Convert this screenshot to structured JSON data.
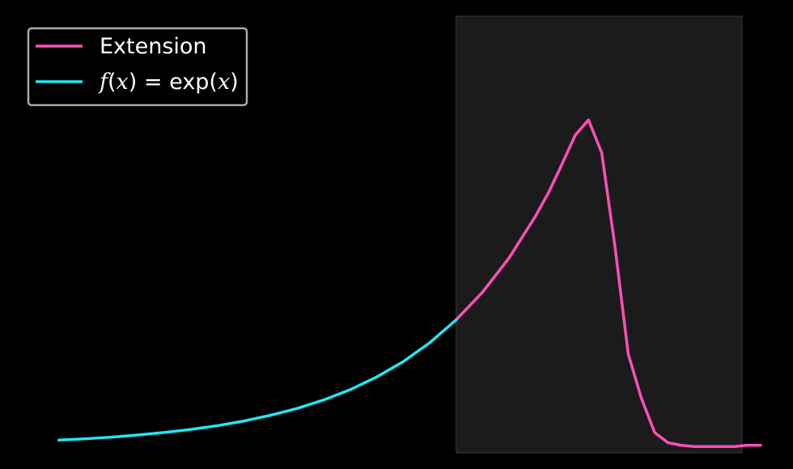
{
  "colors": {
    "background": "#000000",
    "shaded_region": "#1b1b1b",
    "shaded_region_border": "#3a3a3a",
    "extension": "#ff4fb8",
    "exp": "#22e6f0",
    "legend_border": "#aaaaaa",
    "text": "#ffffff"
  },
  "chart_data": {
    "type": "line",
    "title": "",
    "xlabel": "",
    "ylabel": "",
    "axes_visible": false,
    "grid": false,
    "legend_position": "top-left",
    "xlim": [
      -3.2,
      2.3
    ],
    "ylim": [
      -0.05,
      3.4
    ],
    "shaded_x_range": [
      0,
      2.4
    ],
    "series": [
      {
        "name": "Extension",
        "color": "#ff4fb8",
        "x": [
          0,
          0.2,
          0.4,
          0.6,
          0.7,
          0.8,
          0.9,
          1.0,
          1.1,
          1.2,
          1.3,
          1.4,
          1.5,
          1.6,
          1.7,
          1.8,
          1.9,
          2.0,
          2.1,
          2.2,
          2.3
        ],
        "y": [
          1.0,
          1.22,
          1.49,
          1.82,
          2.01,
          2.23,
          2.46,
          2.58,
          2.32,
          1.58,
          0.73,
          0.38,
          0.11,
          0.03,
          0.01,
          0.0,
          0.0,
          0.0,
          0.0,
          0.01,
          0.01
        ]
      },
      {
        "name": "exp",
        "color": "#22e6f0",
        "x": [
          -3.0,
          -2.8,
          -2.6,
          -2.4,
          -2.2,
          -2.0,
          -1.8,
          -1.6,
          -1.4,
          -1.2,
          -1.0,
          -0.8,
          -0.6,
          -0.4,
          -0.2,
          0.0
        ],
        "y": [
          0.05,
          0.061,
          0.074,
          0.091,
          0.111,
          0.135,
          0.165,
          0.202,
          0.247,
          0.301,
          0.368,
          0.449,
          0.549,
          0.67,
          0.819,
          1.0
        ]
      }
    ]
  },
  "legend": {
    "entries": [
      {
        "label": "Extension",
        "color": "#ff4fb8"
      },
      {
        "label": "f(x) = exp(x)",
        "color": "#22e6f0"
      }
    ]
  }
}
